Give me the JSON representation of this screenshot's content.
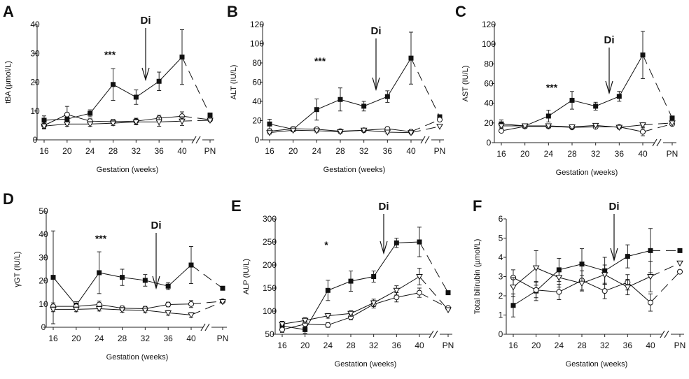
{
  "figure": {
    "gestation_ticks": [
      "16",
      "20",
      "24",
      "28",
      "32",
      "36",
      "40"
    ],
    "pn_label": "PN",
    "arrow_label": "Di"
  },
  "chart_data": [
    {
      "panel": "A",
      "type": "line",
      "ylabel": "tBA (µmol/L)",
      "xlabel": "Gestation (weeks)",
      "ylim": [
        0,
        40
      ],
      "yticks": [
        0,
        10,
        20,
        30,
        40
      ],
      "x": [
        16,
        20,
        24,
        28,
        32,
        36,
        40
      ],
      "significance": "***",
      "series": [
        {
          "marker": "square",
          "values": [
            6.8,
            7.2,
            9.2,
            19.2,
            14.8,
            20.3,
            28.7
          ],
          "errors": [
            1.5,
            2,
            1.2,
            5.5,
            2.5,
            3.2,
            9.5
          ],
          "pn": 8.6
        },
        {
          "marker": "circle",
          "values": [
            5,
            8.8,
            6.5,
            6.3,
            6.5,
            7.5,
            8.2
          ],
          "errors": [
            1.2,
            2.8,
            0.8,
            0.8,
            1,
            1,
            1.5
          ],
          "pn": 7
        },
        {
          "marker": "triangle",
          "values": [
            4.8,
            5.5,
            5.5,
            5.8,
            6.2,
            6.2,
            6.5
          ],
          "errors": [
            0.8,
            0.8,
            0.8,
            0.8,
            1,
            1.5,
            1.5
          ],
          "pn": 6.8
        }
      ]
    },
    {
      "panel": "B",
      "type": "line",
      "ylabel": "ALT (IU/L)",
      "xlabel": "Gestation (weeks)",
      "ylim": [
        0,
        120
      ],
      "yticks": [
        0,
        20,
        40,
        60,
        80,
        100,
        120
      ],
      "x": [
        16,
        20,
        24,
        28,
        32,
        36,
        40
      ],
      "significance": "***",
      "series": [
        {
          "marker": "square",
          "values": [
            16.5,
            11,
            31.5,
            42,
            35,
            45,
            85
          ],
          "errors": [
            5,
            2,
            11,
            12,
            5,
            6,
            27
          ],
          "pn": 24
        },
        {
          "marker": "circle",
          "values": [
            9,
            11.5,
            11,
            9,
            10,
            11.5,
            8.5
          ],
          "errors": [
            2,
            1.5,
            2,
            1.5,
            1.5,
            1.5,
            2
          ],
          "pn": 21
        },
        {
          "marker": "triangle",
          "values": [
            7.5,
            10,
            9.5,
            8.5,
            10,
            8,
            7.5
          ],
          "errors": [
            1.5,
            1.5,
            1.5,
            1.5,
            1.5,
            1.5,
            1.5
          ],
          "pn": 14
        }
      ]
    },
    {
      "panel": "C",
      "type": "line",
      "ylabel": "AST (IU/L)",
      "xlabel": "Gestation (weeks)",
      "ylim": [
        0,
        120
      ],
      "yticks": [
        0,
        20,
        40,
        60,
        80,
        100,
        120
      ],
      "x": [
        16,
        20,
        24,
        28,
        32,
        36,
        40
      ],
      "significance": "***",
      "series": [
        {
          "marker": "square",
          "values": [
            19,
            17,
            27,
            43,
            37,
            47,
            89
          ],
          "errors": [
            4,
            2,
            6,
            9,
            4,
            5,
            24
          ],
          "pn": 25
        },
        {
          "marker": "circle",
          "values": [
            12,
            16.5,
            16.5,
            15.5,
            16,
            16,
            11
          ],
          "errors": [
            1.5,
            1.5,
            1.5,
            1.5,
            1.5,
            1.5,
            4
          ],
          "pn": 19
        },
        {
          "marker": "triangle",
          "values": [
            17,
            17,
            17,
            16,
            17.5,
            15.5,
            18
          ],
          "errors": [
            2,
            1.5,
            1.5,
            1.5,
            1.5,
            1.5,
            2
          ],
          "pn": 20
        }
      ]
    },
    {
      "panel": "D",
      "type": "line",
      "ylabel": "γGT (IU/L)",
      "xlabel": "Gestation (weeks)",
      "ylim": [
        0,
        50
      ],
      "yticks": [
        0,
        10,
        20,
        30,
        40,
        50
      ],
      "x": [
        16,
        20,
        24,
        28,
        32,
        36,
        40
      ],
      "significance": "***",
      "series": [
        {
          "marker": "square",
          "values": [
            21.5,
            9.5,
            23.5,
            21.5,
            20.2,
            17.7,
            26.8
          ],
          "errors": [
            20,
            1.5,
            9,
            3.5,
            2.5,
            1.5,
            8
          ],
          "pn": 16.8
        },
        {
          "marker": "circle",
          "values": [
            9,
            9,
            9.8,
            8.2,
            8,
            9.8,
            10
          ],
          "errors": [
            1.5,
            1,
            1.5,
            1,
            1,
            1,
            1.5
          ],
          "pn": 11.2
        },
        {
          "marker": "triangle",
          "values": [
            7.7,
            7.7,
            8,
            7.5,
            7.3,
            6.2,
            5.3
          ],
          "errors": [
            1,
            1,
            1,
            1,
            1,
            1,
            1
          ],
          "pn": 11
        }
      ]
    },
    {
      "panel": "E",
      "type": "line",
      "ylabel": "ALP (IU/L)",
      "xlabel": "Gestation (weeks)",
      "ylim": [
        50,
        300
      ],
      "yticks": [
        50,
        100,
        150,
        200,
        250,
        300
      ],
      "x": [
        16,
        20,
        24,
        28,
        32,
        36,
        40
      ],
      "significance": "*",
      "series": [
        {
          "marker": "square",
          "values": [
            68,
            60,
            145,
            165,
            175,
            248,
            250
          ],
          "errors": [
            10,
            8,
            22,
            22,
            12,
            10,
            32
          ],
          "pn": 140
        },
        {
          "marker": "circle",
          "values": [
            60,
            72,
            70,
            87,
            115,
            130,
            140
          ],
          "errors": [
            6,
            6,
            5,
            6,
            8,
            10,
            10
          ],
          "pn": 107
        },
        {
          "marker": "triangle",
          "values": [
            72,
            80,
            90,
            95,
            118,
            145,
            175
          ],
          "errors": [
            6,
            6,
            5,
            6,
            8,
            10,
            18
          ],
          "pn": 103
        }
      ]
    },
    {
      "panel": "F",
      "type": "line",
      "ylabel": "Total bilirubin (µmol/L)",
      "xlabel": "Gestation (weeks)",
      "ylim": [
        0,
        6
      ],
      "yticks": [
        0,
        1,
        2,
        3,
        4,
        5,
        6
      ],
      "x": [
        16,
        20,
        24,
        28,
        32,
        36,
        40
      ],
      "significance": "",
      "series": [
        {
          "marker": "square",
          "values": [
            1.5,
            2.25,
            3.35,
            3.65,
            3.3,
            4.05,
            4.35
          ],
          "errors": [
            0.6,
            0.5,
            0.6,
            0.8,
            0.7,
            0.6,
            1.15
          ],
          "pn": 4.35
        },
        {
          "marker": "circle",
          "values": [
            2.95,
            2.3,
            2.2,
            2.8,
            2.25,
            2.7,
            1.65
          ],
          "errors": [
            0.4,
            0.4,
            0.4,
            0.5,
            0.4,
            0.4,
            0.45
          ],
          "pn": 3.25
        },
        {
          "marker": "triangle",
          "values": [
            2.45,
            3.45,
            2.95,
            2.65,
            3.1,
            2.45,
            3
          ],
          "errors": [
            0.5,
            0.9,
            0.5,
            0.4,
            0.5,
            0.4,
            0.8
          ],
          "pn": 3.7
        }
      ]
    }
  ]
}
